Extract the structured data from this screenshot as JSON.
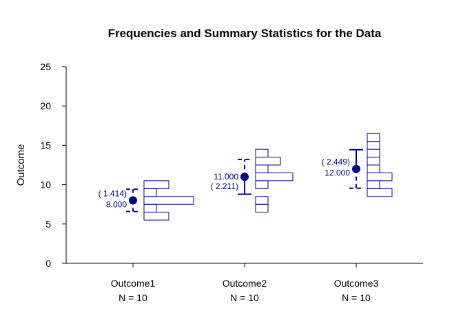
{
  "chart_data": {
    "type": "bar",
    "title": "Frequencies and Summary Statistics for the Data",
    "ylabel": "Outcome",
    "ylim": [
      0,
      25
    ],
    "yticks": [
      0,
      5,
      10,
      15,
      20,
      25
    ],
    "grid": false,
    "colors": {
      "accent": "#00008B",
      "axis": "#000000"
    },
    "groups": [
      {
        "name": "Outcome1",
        "n_label": "N = 10",
        "mean": 8.0,
        "sd": 1.414,
        "mean_label": "8.000",
        "sd_label": "(  1.414)",
        "bins": [
          {
            "y": 6,
            "count": 2
          },
          {
            "y": 7,
            "count": 1
          },
          {
            "y": 8,
            "count": 4
          },
          {
            "y": 9,
            "count": 1
          },
          {
            "y": 10,
            "count": 2
          }
        ]
      },
      {
        "name": "Outcome2",
        "n_label": "N = 10",
        "mean": 11.0,
        "sd": 2.211,
        "mean_label": "11.000",
        "sd_label": "(  2.211)",
        "bins": [
          {
            "y": 7,
            "count": 1
          },
          {
            "y": 8,
            "count": 1
          },
          {
            "y": 10,
            "count": 1
          },
          {
            "y": 11,
            "count": 3
          },
          {
            "y": 12,
            "count": 1
          },
          {
            "y": 13,
            "count": 2
          },
          {
            "y": 14,
            "count": 1
          }
        ]
      },
      {
        "name": "Outcome3",
        "n_label": "N = 10",
        "mean": 12.0,
        "sd": 2.449,
        "mean_label": "12.000",
        "sd_label": "(  2.449)",
        "bins": [
          {
            "y": 9,
            "count": 2
          },
          {
            "y": 10,
            "count": 1
          },
          {
            "y": 11,
            "count": 2
          },
          {
            "y": 12,
            "count": 1
          },
          {
            "y": 13,
            "count": 1
          },
          {
            "y": 14,
            "count": 1
          },
          {
            "y": 15,
            "count": 1
          },
          {
            "y": 16,
            "count": 1
          }
        ]
      }
    ]
  }
}
